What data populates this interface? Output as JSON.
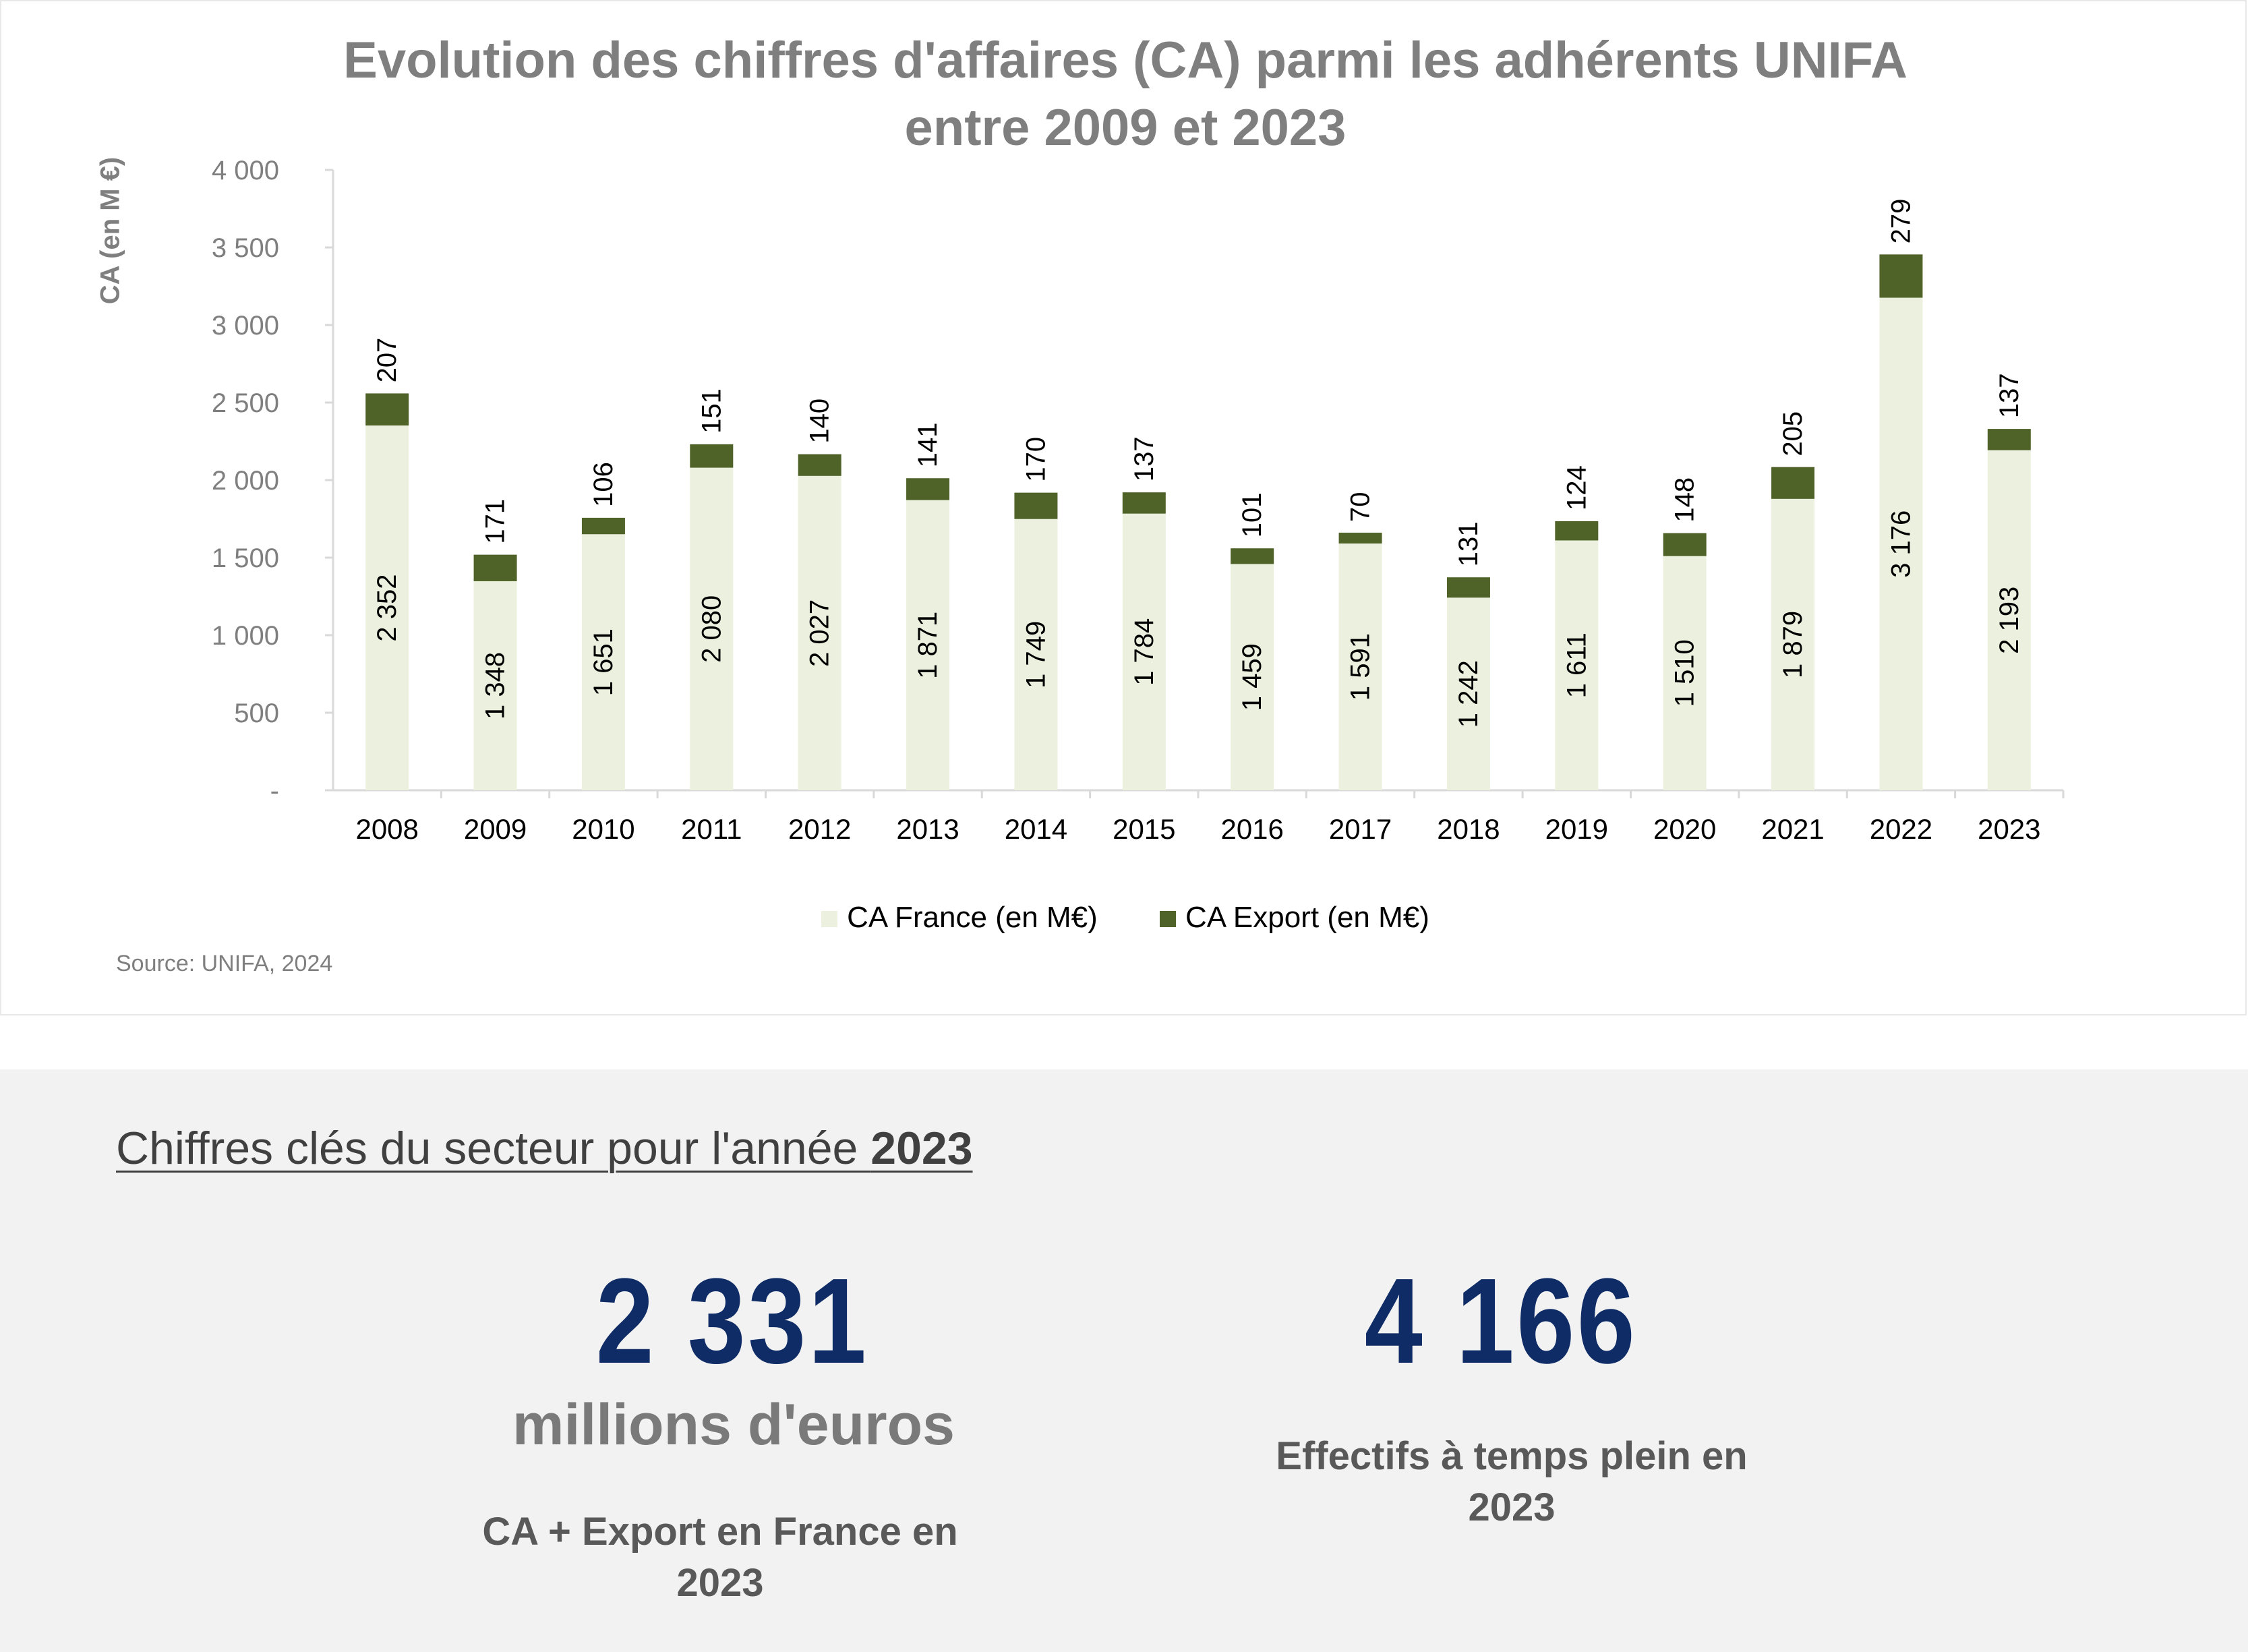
{
  "chart_data": {
    "type": "bar",
    "stacked": true,
    "title": "Evolution des chiffres d'affaires (CA) parmi les adhérents UNIFA entre 2009 et 2023",
    "ylabel": "CA (en M €)",
    "xlabel": "",
    "ylim": [
      0,
      4000
    ],
    "yticks": [
      "-",
      "500",
      "1 000",
      "1 500",
      "2 000",
      "2 500",
      "3 000",
      "3 500",
      "4 000"
    ],
    "ytick_values": [
      0,
      500,
      1000,
      1500,
      2000,
      2500,
      3000,
      3500,
      4000
    ],
    "categories": [
      "2008",
      "2009",
      "2010",
      "2011",
      "2012",
      "2013",
      "2014",
      "2015",
      "2016",
      "2017",
      "2018",
      "2019",
      "2020",
      "2021",
      "2022",
      "2023"
    ],
    "series": [
      {
        "name": "CA France (en M€)",
        "color": "#ebf1de",
        "values": [
          2352,
          1348,
          1651,
          2080,
          2027,
          1871,
          1749,
          1784,
          1459,
          1591,
          1242,
          1611,
          1510,
          1879,
          3176,
          2193
        ],
        "labels": [
          "2 352",
          "1 348",
          "1 651",
          "2 080",
          "2 027",
          "1 871",
          "1 749",
          "1 784",
          "1 459",
          "1 591",
          "1 242",
          "1 611",
          "1 510",
          "1 879",
          "3 176",
          "2 193"
        ]
      },
      {
        "name": "CA Export (en M€)",
        "color": "#4f6228",
        "values": [
          207,
          171,
          106,
          151,
          140,
          141,
          170,
          137,
          101,
          70,
          131,
          124,
          148,
          205,
          279,
          137
        ],
        "labels": [
          "207",
          "171",
          "106",
          "151",
          "140",
          "141",
          "170",
          "137",
          "101",
          "70",
          "131",
          "124",
          "148",
          "205",
          "279",
          "137"
        ]
      }
    ],
    "grid": false,
    "legend_position": "bottom"
  },
  "title_line1": "Evolution des chiffres d'affaires (CA) parmi les adhérents UNIFA",
  "title_line2": "entre 2009 et 2023",
  "source": "Source: UNIFA, 2024",
  "key_figures": {
    "heading_prefix": "Chiffres clés du secteur pour l'année ",
    "heading_year": "2023",
    "revenue_value": "2 331",
    "revenue_unit": "millions d'euros",
    "revenue_caption_line1": "CA + Export en France en",
    "revenue_caption_line2": "2023",
    "staff_value": "4 166",
    "staff_caption_line1": "Effectifs à temps plein en",
    "staff_caption_line2": "2023",
    "number_color": "#0f2c66"
  }
}
